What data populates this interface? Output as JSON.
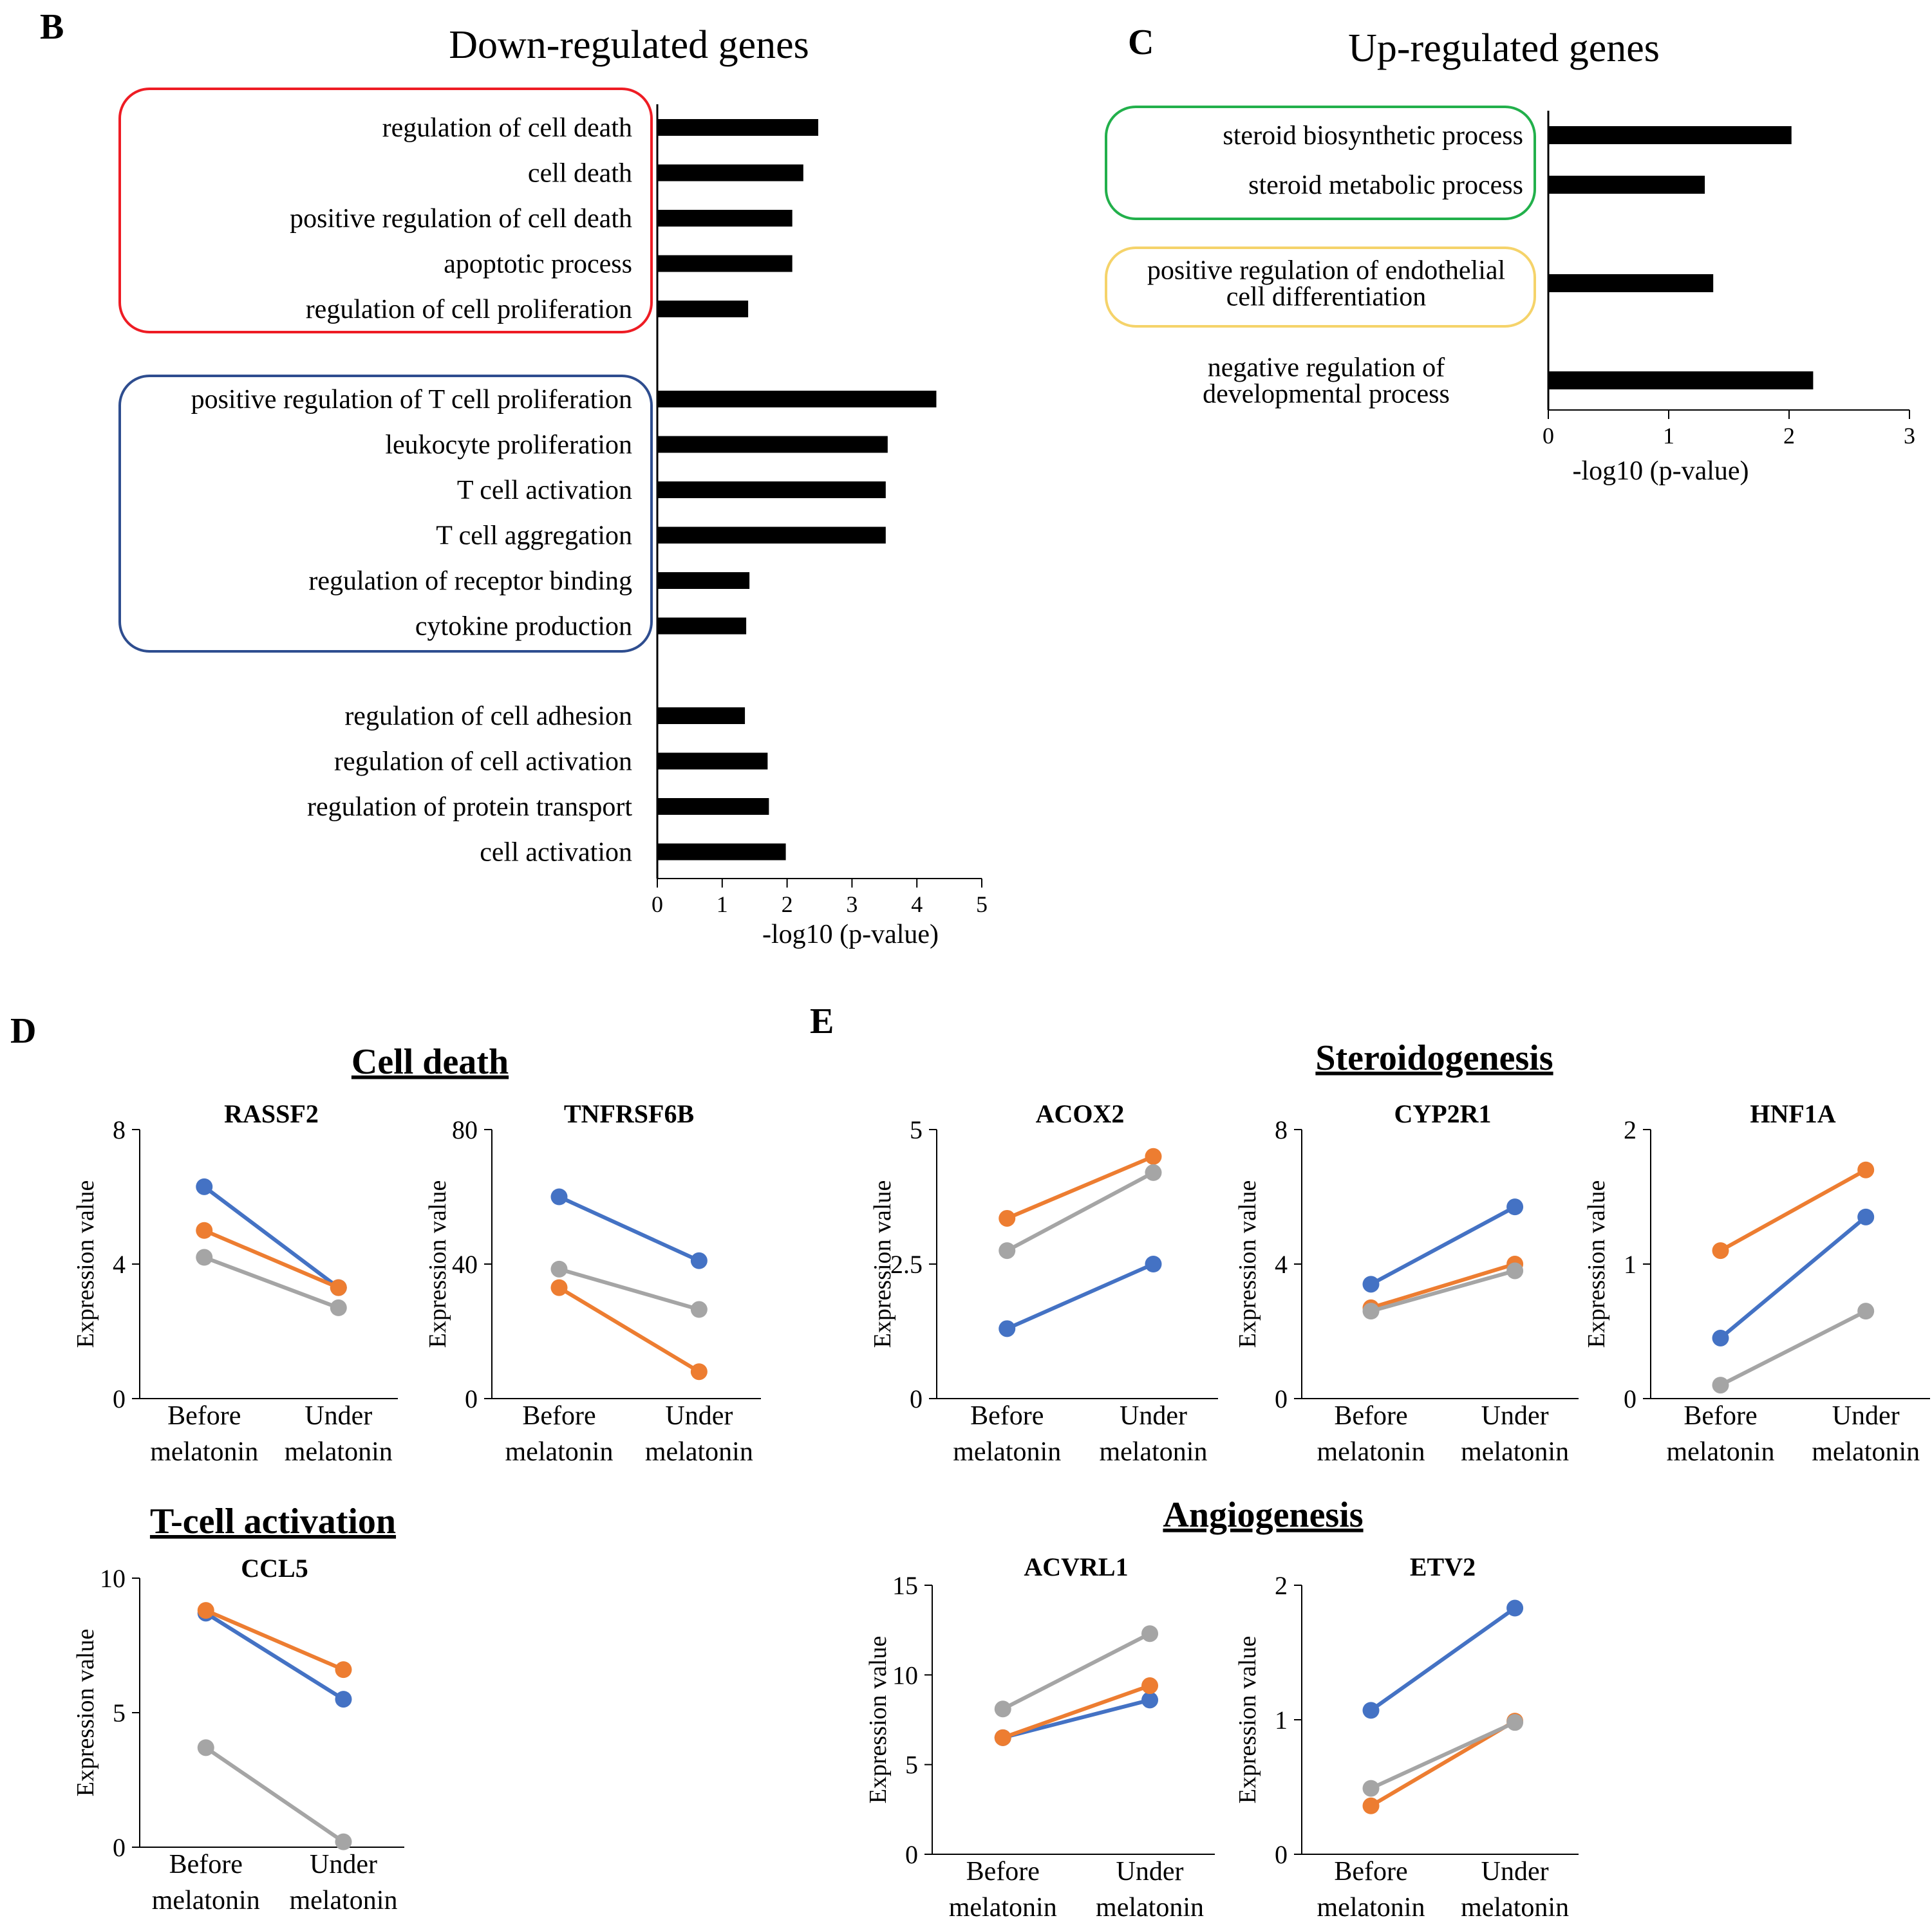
{
  "colors": {
    "bar": "#000000",
    "blue": "#4472C4",
    "orange": "#ED7D31",
    "gray": "#A5A5A5",
    "box_red": "#EE1C24",
    "box_blue": "#2E4D8F",
    "box_green": "#22B04B",
    "box_yellow": "#F5D36A"
  },
  "chart_data": [
    {
      "panel": "B",
      "type": "bar",
      "orientation": "horizontal",
      "title": "Down-regulated genes",
      "xlabel": "-log10 (p-value)",
      "xlim": [
        0,
        5
      ],
      "xticks": [
        "0",
        "1",
        "2",
        "3",
        "4",
        "5"
      ],
      "groups": [
        {
          "box": "red",
          "categories": [
            "regulation of cell death",
            "cell death",
            "positive regulation of cell death",
            "apoptotic process",
            "regulation of cell proliferation"
          ],
          "values": [
            2.48,
            2.25,
            2.08,
            2.08,
            1.4
          ]
        },
        {
          "box": "blue",
          "categories": [
            "positive regulation of T cell proliferation",
            "leukocyte proliferation",
            "T cell activation",
            "T cell aggregation",
            "regulation of receptor binding",
            "cytokine production"
          ],
          "values": [
            4.3,
            3.55,
            3.52,
            3.52,
            1.42,
            1.37
          ]
        },
        {
          "box": "none",
          "categories": [
            "regulation of cell adhesion",
            "regulation of cell activation",
            "regulation of protein transport",
            "cell activation"
          ],
          "values": [
            1.35,
            1.7,
            1.72,
            1.98
          ]
        }
      ]
    },
    {
      "panel": "C",
      "type": "bar",
      "orientation": "horizontal",
      "title": "Up-regulated genes",
      "xlabel": "-log10 (p-value)",
      "xlim": [
        0,
        3
      ],
      "xticks": [
        "0",
        "1",
        "2",
        "3"
      ],
      "groups": [
        {
          "box": "green",
          "categories": [
            [
              "steroid biosynthetic process"
            ],
            [
              "steroid metabolic process"
            ]
          ],
          "values": [
            2.02,
            1.3
          ]
        },
        {
          "box": "yellow",
          "categories": [
            [
              "positive regulation of endothelial",
              "cell differentiation"
            ]
          ],
          "values": [
            1.37
          ]
        },
        {
          "box": "none",
          "categories": [
            [
              "negative regulation of",
              "developmental process"
            ]
          ],
          "values": [
            2.2
          ]
        }
      ]
    },
    {
      "panel": "D",
      "type": "line",
      "section": "Cell death",
      "title": "RASSF2",
      "ylabel": "Expression value",
      "x": [
        [
          "Before",
          "melatonin"
        ],
        [
          "Under",
          "melatonin"
        ]
      ],
      "ylim": [
        0,
        8
      ],
      "yticks": [
        "0",
        "4",
        "8"
      ],
      "series": [
        {
          "color": "blue",
          "values": [
            6.3,
            3.3
          ]
        },
        {
          "color": "orange",
          "values": [
            5.0,
            3.3
          ]
        },
        {
          "color": "gray",
          "values": [
            4.2,
            2.7
          ]
        }
      ]
    },
    {
      "panel": "D",
      "type": "line",
      "title": "TNFRSF6B",
      "ylabel": "Expression value",
      "x": [
        [
          "Before",
          "melatonin"
        ],
        [
          "Under",
          "melatonin"
        ]
      ],
      "ylim": [
        0,
        80
      ],
      "yticks": [
        "0",
        "40",
        "80"
      ],
      "series": [
        {
          "color": "blue",
          "values": [
            60,
            41
          ]
        },
        {
          "color": "orange",
          "values": [
            33,
            8
          ]
        },
        {
          "color": "gray",
          "values": [
            38.5,
            26.5
          ]
        }
      ]
    },
    {
      "panel": "D",
      "type": "line",
      "section": "T-cell activation",
      "title": "CCL5",
      "ylabel": "Expression value",
      "x": [
        [
          "Before",
          "melatonin"
        ],
        [
          "Under",
          "melatonin"
        ]
      ],
      "ylim": [
        0,
        10
      ],
      "yticks": [
        "0",
        "5",
        "10"
      ],
      "series": [
        {
          "color": "blue",
          "values": [
            8.7,
            5.5
          ]
        },
        {
          "color": "orange",
          "values": [
            8.8,
            6.6
          ]
        },
        {
          "color": "gray",
          "values": [
            3.7,
            0.2
          ]
        }
      ]
    },
    {
      "panel": "E",
      "type": "line",
      "section": "Steroidogenesis",
      "title": "ACOX2",
      "ylabel": "Expression value",
      "x": [
        [
          "Before",
          "melatonin"
        ],
        [
          "Under",
          "melatonin"
        ]
      ],
      "ylim": [
        0,
        5
      ],
      "yticks": [
        "0",
        "2.5",
        "5"
      ],
      "series": [
        {
          "color": "blue",
          "values": [
            1.3,
            2.5
          ]
        },
        {
          "color": "orange",
          "values": [
            3.35,
            4.5
          ]
        },
        {
          "color": "gray",
          "values": [
            2.75,
            4.2
          ]
        }
      ]
    },
    {
      "panel": "E",
      "type": "line",
      "title": "CYP2R1",
      "ylabel": "Expression value",
      "x": [
        [
          "Before",
          "melatonin"
        ],
        [
          "Under",
          "melatonin"
        ]
      ],
      "ylim": [
        0,
        8
      ],
      "yticks": [
        "0",
        "4",
        "8"
      ],
      "series": [
        {
          "color": "blue",
          "values": [
            3.4,
            5.7
          ]
        },
        {
          "color": "orange",
          "values": [
            2.7,
            4.0
          ]
        },
        {
          "color": "gray",
          "values": [
            2.6,
            3.8
          ]
        }
      ]
    },
    {
      "panel": "E",
      "type": "line",
      "title": "HNF1A",
      "ylabel": "Expression value",
      "x": [
        [
          "Before",
          "melatonin"
        ],
        [
          "Under",
          "melatonin"
        ]
      ],
      "ylim": [
        0,
        2
      ],
      "yticks": [
        "0",
        "1",
        "2"
      ],
      "series": [
        {
          "color": "blue",
          "values": [
            0.45,
            1.35
          ]
        },
        {
          "color": "orange",
          "values": [
            1.1,
            1.7
          ]
        },
        {
          "color": "gray",
          "values": [
            0.1,
            0.65
          ]
        }
      ]
    },
    {
      "panel": "E",
      "type": "line",
      "section": "Angiogenesis",
      "title": "ACVRL1",
      "ylabel": "Expression value",
      "x": [
        [
          "Before",
          "melatonin"
        ],
        [
          "Under",
          "melatonin"
        ]
      ],
      "ylim": [
        0,
        15
      ],
      "yticks": [
        "0",
        "5",
        "10",
        "15"
      ],
      "series": [
        {
          "color": "blue",
          "values": [
            6.5,
            8.6
          ]
        },
        {
          "color": "orange",
          "values": [
            6.5,
            9.4
          ]
        },
        {
          "color": "gray",
          "values": [
            8.1,
            12.3
          ]
        }
      ]
    },
    {
      "panel": "E",
      "type": "line",
      "title": "ETV2",
      "ylabel": "Expression value",
      "x": [
        [
          "Before",
          "melatonin"
        ],
        [
          "Under",
          "melatonin"
        ]
      ],
      "ylim": [
        0,
        2
      ],
      "yticks": [
        "0",
        "1",
        "2"
      ],
      "series": [
        {
          "color": "blue",
          "values": [
            1.07,
            1.83
          ]
        },
        {
          "color": "orange",
          "values": [
            0.36,
            0.99
          ]
        },
        {
          "color": "gray",
          "values": [
            0.49,
            0.98
          ]
        }
      ]
    }
  ],
  "panel_letters": {
    "B": "B",
    "C": "C",
    "D": "D",
    "E": "E"
  },
  "sections": {
    "cell_death": "Cell death",
    "t_cell_activation": "T-cell activation",
    "steroidogenesis": "Steroidogenesis",
    "angiogenesis": "Angiogenesis"
  }
}
